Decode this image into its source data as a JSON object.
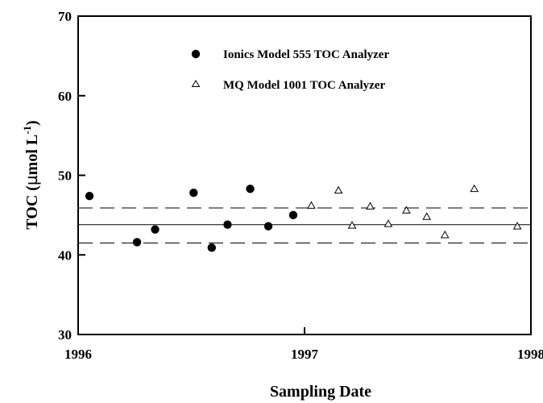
{
  "chart_data": {
    "type": "scatter",
    "xlabel": "Sampling Date",
    "ylabel_main": "TOC (",
    "ylabel_mu": "µ",
    "ylabel_unit": "mol  L",
    "ylabel_exp": "-1",
    "ylabel_close": ")",
    "xlim": [
      1996,
      1998
    ],
    "ylim": [
      30,
      70
    ],
    "xticks": [
      1996,
      1997,
      1998
    ],
    "yticks": [
      30,
      40,
      50,
      60,
      70
    ],
    "legend_position": "top",
    "series": [
      {
        "name": "Ionics Model 555 TOC Analyzer",
        "marker": "filled-circle",
        "x": [
          1996.05,
          1996.26,
          1996.34,
          1996.51,
          1996.59,
          1996.66,
          1996.76,
          1996.84,
          1996.95
        ],
        "y": [
          47.4,
          41.6,
          43.2,
          47.8,
          40.9,
          43.8,
          48.3,
          43.6,
          45.0
        ]
      },
      {
        "name": "MQ Model 1001 TOC Analyzer",
        "marker": "open-triangle",
        "x": [
          1997.03,
          1997.15,
          1997.21,
          1997.29,
          1997.37,
          1997.45,
          1997.54,
          1997.62,
          1997.75,
          1997.94
        ],
        "y": [
          46.2,
          48.1,
          43.7,
          46.1,
          43.9,
          45.6,
          44.8,
          42.5,
          48.3,
          43.6
        ]
      }
    ],
    "reference_lines": [
      {
        "y": 43.8,
        "style": "solid"
      },
      {
        "y": 45.9,
        "style": "dashed"
      },
      {
        "y": 41.5,
        "style": "dashed"
      }
    ]
  }
}
